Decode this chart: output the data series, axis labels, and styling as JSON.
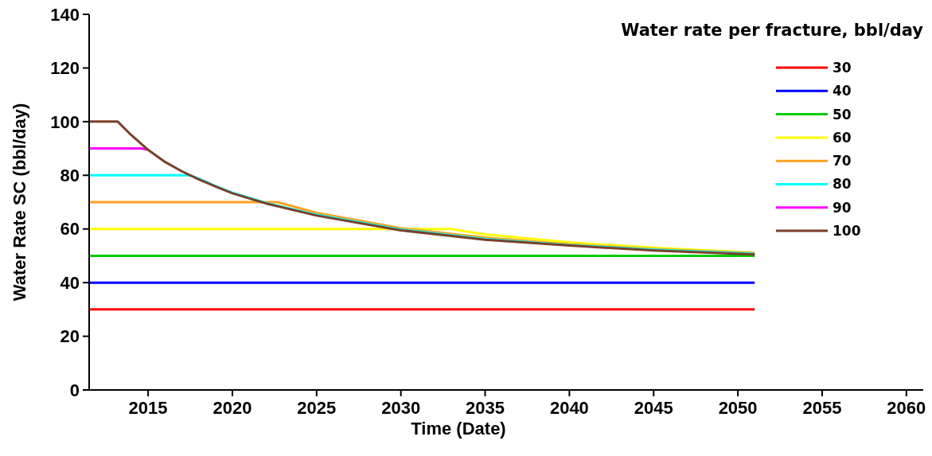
{
  "chart_data": {
    "type": "line",
    "xlabel": "Time (Date)",
    "ylabel": "Water Rate SC (bbl/day)",
    "legend_title": "Water rate per fracture, bbl/day",
    "legend": "top right",
    "grid": false,
    "line_style": "solid",
    "xlim": [
      2011.5,
      2061
    ],
    "xticks": [
      2015,
      2020,
      2025,
      2030,
      2035,
      2040,
      2045,
      2050,
      2055,
      2060
    ],
    "ylim": [
      0,
      140
    ],
    "yticks": [
      0,
      20,
      40,
      60,
      80,
      100,
      120,
      140
    ],
    "series": [
      {
        "name": "30",
        "color": "#ff0000",
        "x": [
          2011.5,
          2051
        ],
        "values": [
          30,
          30
        ]
      },
      {
        "name": "40",
        "color": "#0000ff",
        "x": [
          2011.5,
          2051
        ],
        "values": [
          40,
          40
        ]
      },
      {
        "name": "50",
        "color": "#00cc00",
        "x": [
          2011.5,
          2051
        ],
        "values": [
          50,
          50
        ]
      },
      {
        "name": "60",
        "color": "#ffff00",
        "x": [
          2011.5,
          2033,
          2035,
          2040,
          2045,
          2051
        ],
        "values": [
          60,
          60,
          58,
          55,
          53,
          51.2
        ]
      },
      {
        "name": "70",
        "color": "#ffa020",
        "x": [
          2011.5,
          2022.7,
          2025,
          2030,
          2035,
          2040,
          2045,
          2051
        ],
        "values": [
          70,
          70,
          66,
          60.3,
          56.8,
          54.3,
          52.5,
          51
        ]
      },
      {
        "name": "80",
        "color": "#00ffff",
        "x": [
          2011.5,
          2017.5,
          2018,
          2019,
          2020,
          2022,
          2025,
          2030,
          2035,
          2040,
          2045,
          2051
        ],
        "values": [
          80,
          80,
          78.8,
          76,
          73.5,
          69.7,
          65.3,
          59.8,
          56.3,
          54,
          52.3,
          50.8
        ]
      },
      {
        "name": "90",
        "color": "#ff00ff",
        "x": [
          2011.5,
          2014.6,
          2015
        ],
        "values": [
          90,
          90,
          89.5
        ]
      },
      {
        "name": "100",
        "color": "#7b3f2a",
        "x": [
          2011.5,
          2013.2,
          2014,
          2015,
          2016,
          2017,
          2018,
          2019,
          2020,
          2022,
          2025,
          2030,
          2035,
          2040,
          2045,
          2051
        ],
        "values": [
          100,
          100,
          95,
          89.5,
          85,
          81.5,
          78.5,
          75.8,
          73.3,
          69.5,
          65,
          59.5,
          56,
          53.8,
          52,
          50.5
        ]
      }
    ]
  }
}
